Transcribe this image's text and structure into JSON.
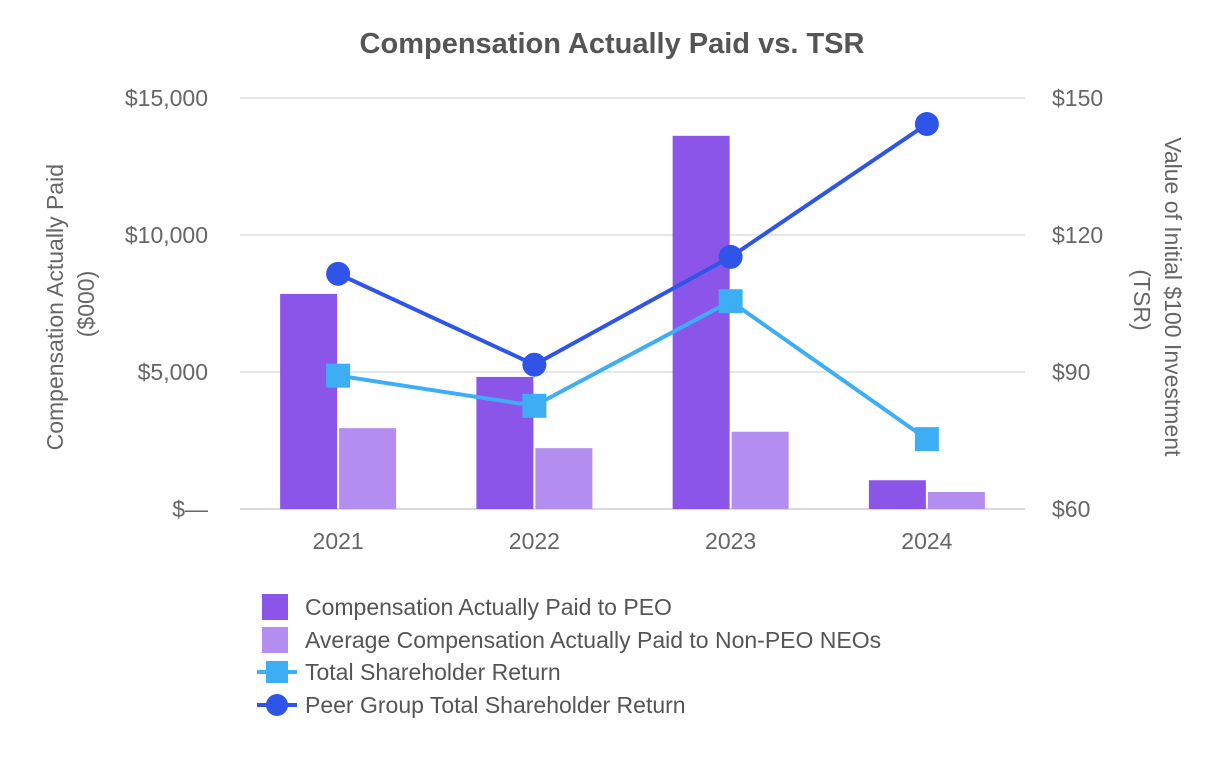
{
  "chart_data": {
    "type": "bar",
    "title": "Compensation Actually Paid vs. TSR",
    "categories": [
      "2021",
      "2022",
      "2023",
      "2024"
    ],
    "ylabel_left": [
      "Compensation Actually Paid",
      "($000)"
    ],
    "ylabel_right": [
      "Value of Initial $100 Investment",
      "(TSR)"
    ],
    "ylim_left": [
      0,
      15000
    ],
    "ylim_right": [
      60,
      150
    ],
    "left_ticks": [
      {
        "value": 0,
        "label": "$—"
      },
      {
        "value": 5000,
        "label": "$5,000"
      },
      {
        "value": 10000,
        "label": "$10,000"
      },
      {
        "value": 15000,
        "label": "$15,000"
      }
    ],
    "right_ticks": [
      {
        "value": 60,
        "label": "$60"
      },
      {
        "value": 90,
        "label": "$90"
      },
      {
        "value": 120,
        "label": "$120"
      },
      {
        "value": 150,
        "label": "$150"
      }
    ],
    "grid": true,
    "legend_position": "bottom",
    "series": [
      {
        "name": "Compensation Actually Paid to PEO",
        "kind": "bar",
        "axis": "left",
        "color": "#8c55ea",
        "values": [
          7850,
          4820,
          13620,
          1050
        ]
      },
      {
        "name": "Average Compensation Actually Paid to Non-PEO NEOs",
        "kind": "bar",
        "axis": "left",
        "color": "#b48df0",
        "values": [
          2950,
          2220,
          2820,
          620
        ]
      },
      {
        "name": "Total Shareholder Return",
        "kind": "line",
        "marker": "square",
        "axis": "right",
        "color": "#3eaef4",
        "values": [
          89.2,
          82.6,
          105.5,
          75.3
        ]
      },
      {
        "name": "Peer Group Total Shareholder Return",
        "kind": "line",
        "marker": "circle",
        "axis": "right",
        "color": "#2f54e8",
        "values": [
          111.5,
          91.6,
          115.2,
          144.3
        ]
      }
    ]
  }
}
